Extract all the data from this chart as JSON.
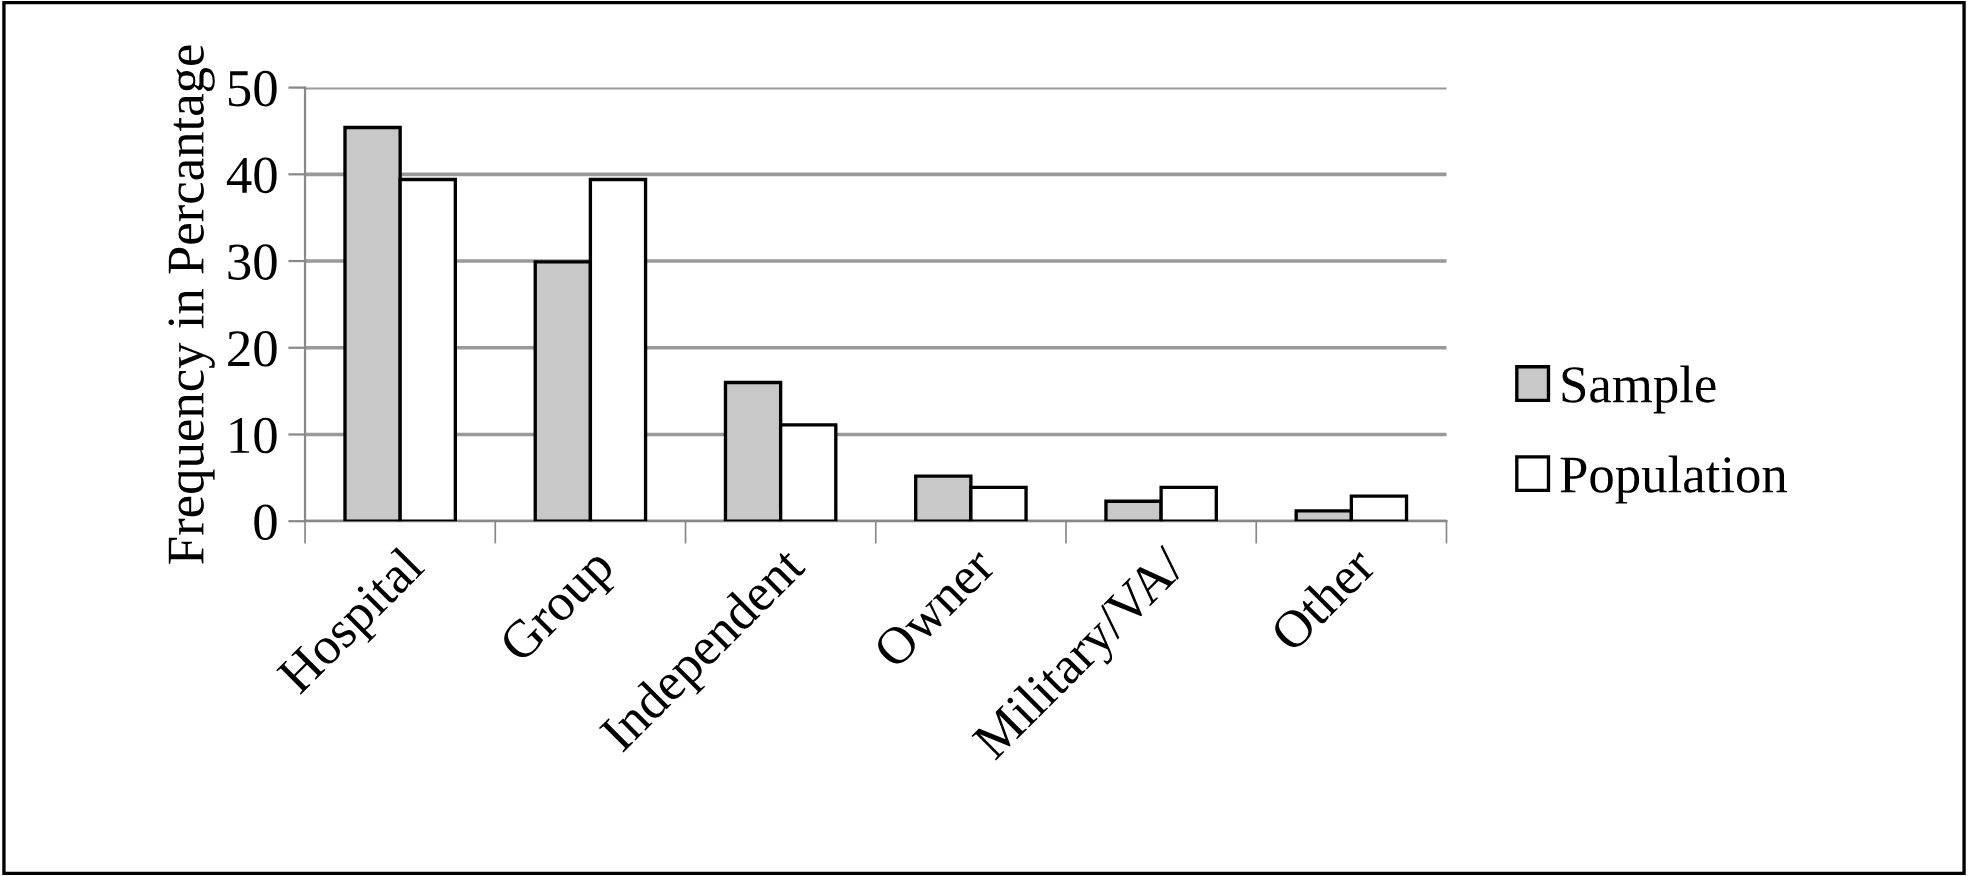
{
  "chart_data": {
    "type": "bar",
    "ylabel": "Frequency in Percantage",
    "categories": [
      "Hospital",
      "Group",
      "Independent",
      "Owner",
      "Military/VA/",
      "Other"
    ],
    "series": [
      {
        "name": "Sample",
        "color": "#c8c8c8",
        "values": [
          45.4,
          29.9,
          16.0,
          5.2,
          2.3,
          1.2
        ]
      },
      {
        "name": "Population",
        "color": "#ffffff",
        "values": [
          39.4,
          39.4,
          11.1,
          3.9,
          3.9,
          2.9
        ]
      }
    ],
    "ylim": [
      0,
      50
    ],
    "yticks": [
      0,
      10,
      20,
      30,
      40,
      50
    ],
    "grid": "y",
    "legend": "right"
  }
}
